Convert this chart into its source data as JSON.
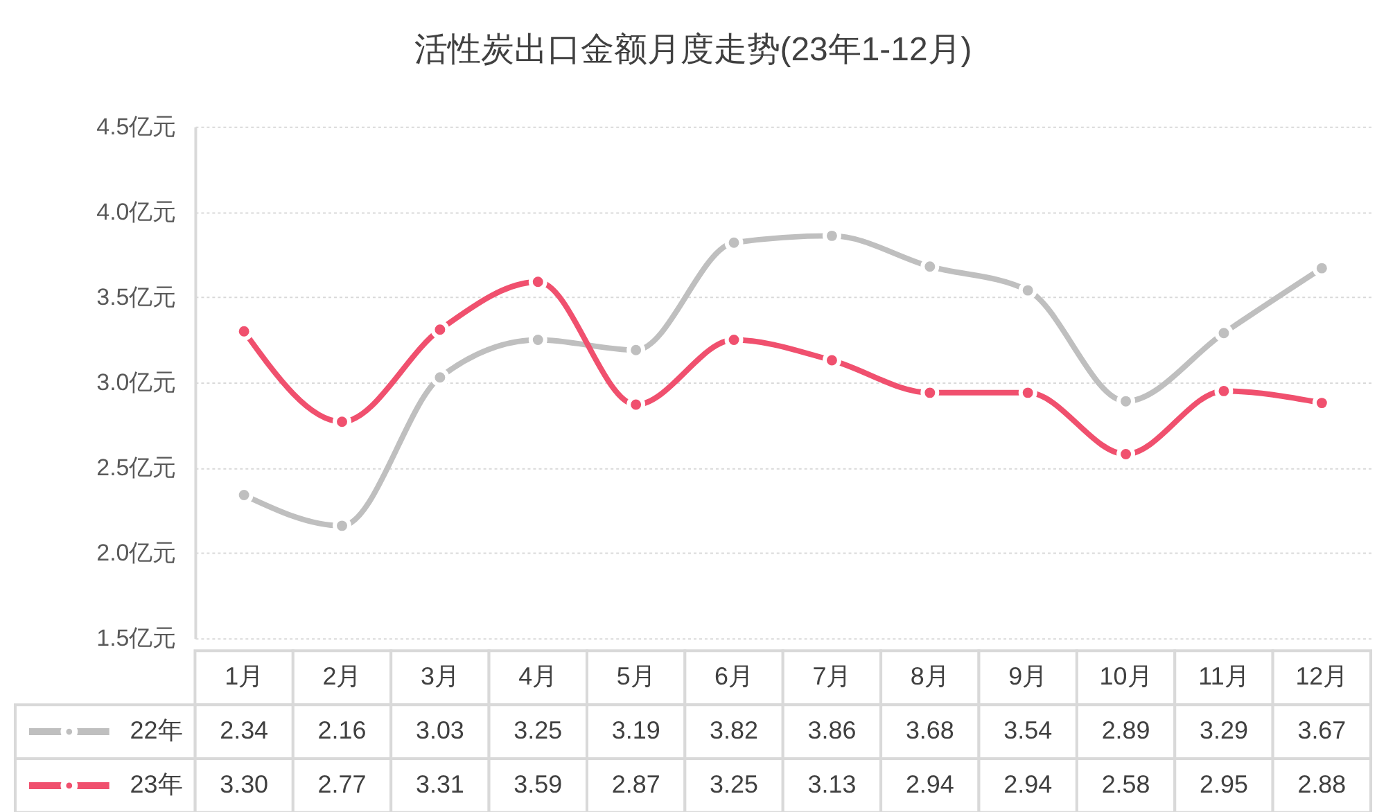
{
  "chart_data": {
    "type": "line",
    "title": "活性炭出口金额月度走势(23年1-12月)",
    "categories": [
      "1月",
      "2月",
      "3月",
      "4月",
      "5月",
      "6月",
      "7月",
      "8月",
      "9月",
      "10月",
      "11月",
      "12月"
    ],
    "series": [
      {
        "name": "22年",
        "color": "#bfbfbf",
        "values": [
          2.34,
          2.16,
          3.03,
          3.25,
          3.19,
          3.82,
          3.86,
          3.68,
          3.54,
          2.89,
          3.29,
          3.67
        ],
        "value_labels": [
          "2.34",
          "2.16",
          "3.03",
          "3.25",
          "3.19",
          "3.82",
          "3.86",
          "3.68",
          "3.54",
          "2.89",
          "3.29",
          "3.67"
        ]
      },
      {
        "name": "23年",
        "color": "#f0506e",
        "values": [
          3.3,
          2.77,
          3.31,
          3.59,
          2.87,
          3.25,
          3.13,
          2.94,
          2.94,
          2.58,
          2.95,
          2.88
        ],
        "value_labels": [
          "3.30",
          "2.77",
          "3.31",
          "3.59",
          "2.87",
          "3.25",
          "3.13",
          "2.94",
          "2.94",
          "2.58",
          "2.95",
          "2.88"
        ]
      }
    ],
    "ylim": [
      1.5,
      4.5
    ],
    "yticks": [
      {
        "value": 1.5,
        "label": "1.5亿元"
      },
      {
        "value": 2.0,
        "label": "2.0亿元"
      },
      {
        "value": 2.5,
        "label": "2.5亿元"
      },
      {
        "value": 3.0,
        "label": "3.0亿元"
      },
      {
        "value": 3.5,
        "label": "3.5亿元"
      },
      {
        "value": 4.0,
        "label": "4.0亿元"
      },
      {
        "value": 4.5,
        "label": "4.5亿元"
      }
    ],
    "grid": "y",
    "legend": "bottom",
    "marker": "circle",
    "line_style": "solid"
  }
}
